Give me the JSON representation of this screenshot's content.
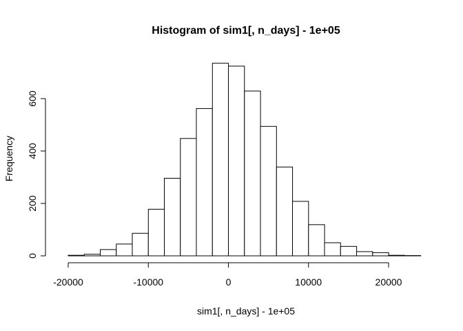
{
  "chart_data": {
    "type": "bar",
    "title": "Histogram of sim1[, n_days] - 1e+05",
    "xlabel": "sim1[, n_days] - 1e+05",
    "ylabel": "Frequency",
    "bin_width": 2000,
    "bins": [
      {
        "start": -20000,
        "end": -18000,
        "count": 2
      },
      {
        "start": -18000,
        "end": -16000,
        "count": 6
      },
      {
        "start": -16000,
        "end": -14000,
        "count": 24
      },
      {
        "start": -14000,
        "end": -12000,
        "count": 45
      },
      {
        "start": -12000,
        "end": -10000,
        "count": 86
      },
      {
        "start": -10000,
        "end": -8000,
        "count": 178
      },
      {
        "start": -8000,
        "end": -6000,
        "count": 296
      },
      {
        "start": -6000,
        "end": -4000,
        "count": 448
      },
      {
        "start": -4000,
        "end": -2000,
        "count": 562
      },
      {
        "start": -2000,
        "end": 0,
        "count": 735
      },
      {
        "start": 0,
        "end": 2000,
        "count": 724
      },
      {
        "start": 2000,
        "end": 4000,
        "count": 629
      },
      {
        "start": 4000,
        "end": 6000,
        "count": 494
      },
      {
        "start": 6000,
        "end": 8000,
        "count": 339
      },
      {
        "start": 8000,
        "end": 10000,
        "count": 208
      },
      {
        "start": 10000,
        "end": 12000,
        "count": 119
      },
      {
        "start": 12000,
        "end": 14000,
        "count": 50
      },
      {
        "start": 14000,
        "end": 16000,
        "count": 36
      },
      {
        "start": 16000,
        "end": 18000,
        "count": 16
      },
      {
        "start": 18000,
        "end": 20000,
        "count": 12
      },
      {
        "start": 20000,
        "end": 22000,
        "count": 2
      },
      {
        "start": 22000,
        "end": 24000,
        "count": 1
      }
    ],
    "xlim": [
      -20000,
      24000
    ],
    "ylim": [
      0,
      750
    ],
    "x_ticks": [
      -20000,
      -10000,
      0,
      10000,
      20000
    ],
    "x_tick_labels": [
      "-20000",
      "-10000",
      "0",
      "10000",
      "20000"
    ],
    "y_ticks": [
      0,
      200,
      400,
      600
    ],
    "y_tick_labels": [
      "0",
      "200",
      "400",
      "600"
    ],
    "grid": false,
    "legend": "none"
  }
}
